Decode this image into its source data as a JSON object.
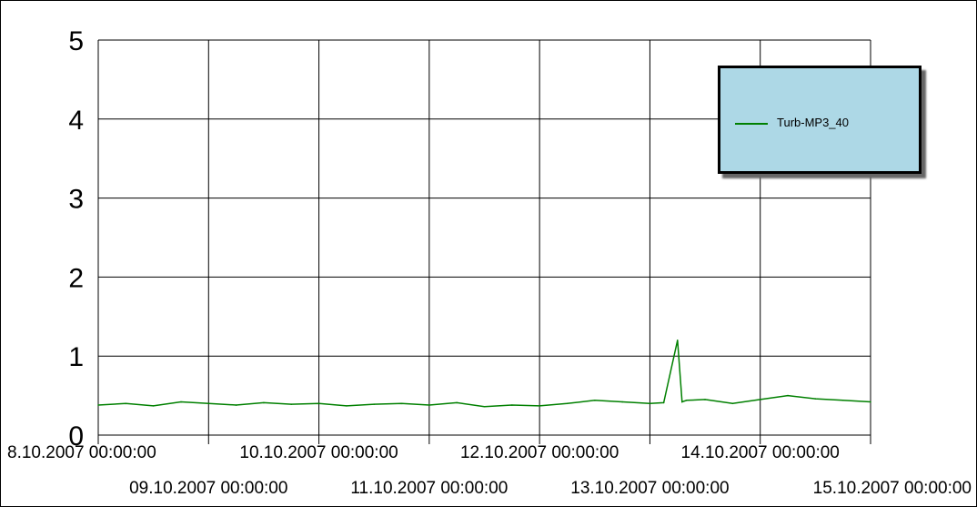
{
  "chart_data": {
    "type": "line",
    "title": "",
    "xlabel": "",
    "ylabel": "",
    "ylim": [
      0,
      5
    ],
    "y_ticks": [
      "0",
      "1",
      "2",
      "3",
      "4",
      "5"
    ],
    "x_ticks": [
      "8.10.2007 00:00:00",
      "09.10.2007 00:00:00",
      "10.10.2007 00:00:00",
      "11.10.2007 00:00:00",
      "12.10.2007 00:00:00",
      "13.10.2007 00:00:00",
      "14.10.2007 00:00:00",
      "15.10.2007 00:00:00"
    ],
    "grid": true,
    "legend_position": "top-right",
    "series": [
      {
        "name": "Turb-MP3_40",
        "color": "#008000",
        "x": [
          "08.10.2007 00:00",
          "08.10.2007 06:00",
          "08.10.2007 12:00",
          "08.10.2007 18:00",
          "09.10.2007 00:00",
          "09.10.2007 06:00",
          "09.10.2007 12:00",
          "09.10.2007 18:00",
          "10.10.2007 00:00",
          "10.10.2007 06:00",
          "10.10.2007 12:00",
          "10.10.2007 18:00",
          "11.10.2007 00:00",
          "11.10.2007 06:00",
          "11.10.2007 12:00",
          "11.10.2007 18:00",
          "12.10.2007 00:00",
          "12.10.2007 06:00",
          "12.10.2007 12:00",
          "12.10.2007 18:00",
          "13.10.2007 00:00",
          "13.10.2007 03:00",
          "13.10.2007 06:00",
          "13.10.2007 07:00",
          "13.10.2007 08:00",
          "13.10.2007 12:00",
          "13.10.2007 18:00",
          "14.10.2007 00:00",
          "14.10.2007 06:00",
          "14.10.2007 12:00",
          "14.10.2007 18:00",
          "15.10.2007 00:00"
        ],
        "values": [
          0.38,
          0.4,
          0.37,
          0.42,
          0.4,
          0.38,
          0.41,
          0.39,
          0.4,
          0.37,
          0.39,
          0.4,
          0.38,
          0.41,
          0.36,
          0.38,
          0.37,
          0.4,
          0.44,
          0.42,
          0.4,
          0.41,
          1.2,
          0.42,
          0.44,
          0.45,
          0.4,
          0.45,
          0.5,
          0.46,
          0.44,
          0.42
        ]
      }
    ]
  }
}
